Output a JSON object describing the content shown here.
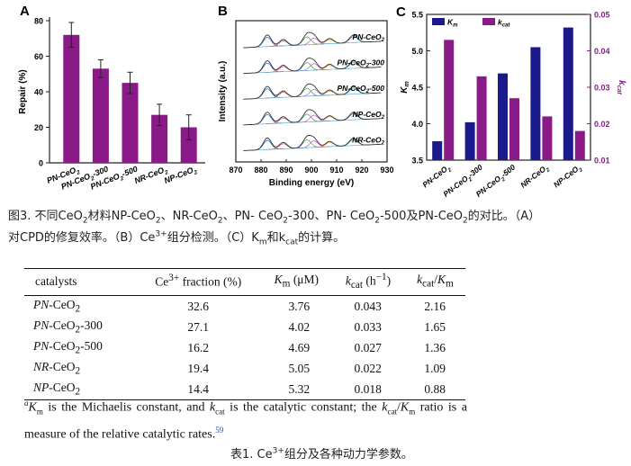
{
  "figure": {
    "panel_a": {
      "letter": "A",
      "chart_data": {
        "type": "bar",
        "categories": [
          "PN-CeO2",
          "PN-CeO2-300",
          "PN-CeO2-500",
          "NR-CeO2",
          "NP-CeO2"
        ],
        "values": [
          72,
          53,
          45,
          27,
          20
        ],
        "error": [
          7,
          5,
          6,
          6,
          7
        ],
        "ylabel": "Repair (%)",
        "ylim": [
          0,
          80
        ],
        "yticks": [
          0,
          20,
          40,
          60,
          80
        ],
        "color": "#8b1a89"
      }
    },
    "panel_b": {
      "letter": "B",
      "chart_data": {
        "type": "line",
        "xlabel": "Binding energy (eV)",
        "ylabel": "Intensity (a.u.)",
        "xlim": [
          870,
          930
        ],
        "xticks": [
          870,
          880,
          890,
          900,
          910,
          920,
          930
        ],
        "series": [
          {
            "name": "PN-CeO2"
          },
          {
            "name": "PN-CeO2-300"
          },
          {
            "name": "PN-CeO2-500"
          },
          {
            "name": "NP-CeO2"
          },
          {
            "name": "NR-CeO2"
          }
        ]
      }
    },
    "panel_c": {
      "letter": "C",
      "chart_data": {
        "type": "bar",
        "categories": [
          "PN-CeO2",
          "PN-CeO2-300",
          "PN-CeO2-500",
          "NR-CeO2",
          "NP-CeO2"
        ],
        "series": [
          {
            "name": "Km",
            "axis": "left",
            "values": [
              3.76,
              4.02,
              4.69,
              5.05,
              5.32
            ],
            "color": "#1a1a8c"
          },
          {
            "name": "kcat",
            "axis": "right",
            "values": [
              0.043,
              0.033,
              0.027,
              0.022,
              0.018
            ],
            "color": "#8b1a89"
          }
        ],
        "ylabel_left": "Km",
        "ylabel_right": "kcat",
        "ylim_left": [
          3.5,
          5.5
        ],
        "yticks_left": [
          "3.5",
          "4.0",
          "4.5",
          "5.0",
          "5.5"
        ],
        "ylim_right": [
          0.01,
          0.05
        ],
        "yticks_right": [
          "0.01",
          "0.02",
          "0.03",
          "0.04",
          "0.05"
        ],
        "legend": "top-left"
      }
    }
  },
  "caption": {
    "label": "图3. ",
    "t1": "不同CeO",
    "s1": "2",
    "t2": "材料NP-CeO",
    "s2": "2",
    "t3": "、NR-CeO",
    "s3": "2",
    "t4": "、PN- CeO",
    "s4": "2",
    "t5": "-300、PN- CeO",
    "s5": "2",
    "t6": "-500及PN-CeO",
    "s6": "2",
    "t7": "的对比。（A）",
    "line2a": "对CPD的修复效率。（B）Ce",
    "line2sup": "3+",
    "line2b": "组分检测。（C）K",
    "line2sub1": "m",
    "line2c": "和k",
    "line2sub2": "cat",
    "line2d": "的计算。"
  },
  "table": {
    "headers": {
      "catalysts": "catalysts",
      "ce3_pre": "Ce",
      "ce3_sup": "3+",
      "ce3_post": " fraction (%)",
      "km_var": "K",
      "km_sub": "m",
      "km_unit": " (μM)",
      "kcat_var": "k",
      "kcat_sub": "cat",
      "kcat_unit": " (h",
      "kcat_exp": "−1",
      "kcat_close": ")",
      "ratio_k": "k",
      "ratio_ksub": "cat",
      "ratio_slash": "/",
      "ratio_K": "K",
      "ratio_Ksub": "m"
    },
    "rows": [
      {
        "prefix": "PN",
        "base": "-CeO",
        "sub": "2",
        "suffix": "",
        "ce3": "32.6",
        "km": "3.76",
        "kcat": "0.043",
        "ratio": "2.16"
      },
      {
        "prefix": "PN",
        "base": "-CeO",
        "sub": "2",
        "suffix": "-300",
        "ce3": "27.1",
        "km": "4.02",
        "kcat": "0.033",
        "ratio": "1.65"
      },
      {
        "prefix": "PN",
        "base": "-CeO",
        "sub": "2",
        "suffix": "-500",
        "ce3": "16.2",
        "km": "4.69",
        "kcat": "0.027",
        "ratio": "1.36"
      },
      {
        "prefix": "NR",
        "base": "-CeO",
        "sub": "2",
        "suffix": "",
        "ce3": "19.4",
        "km": "5.05",
        "kcat": "0.022",
        "ratio": "1.09"
      },
      {
        "prefix": "NP",
        "base": "-CeO",
        "sub": "2",
        "suffix": "",
        "ce3": "14.4",
        "km": "5.32",
        "kcat": "0.018",
        "ratio": "0.88"
      }
    ]
  },
  "footnote": {
    "mark": "a",
    "km": "K",
    "km_sub": "m",
    "t1": " is the Michaelis constant, and ",
    "kcat": "k",
    "kcat_sub": "cat",
    "t2": " is the catalytic constant; the ",
    "r_k": "k",
    "r_ksub": "cat",
    "r_slash": "/",
    "r_K": "K",
    "r_Ksub": "m",
    "t3": " ratio is a measure of the relative catalytic rates.",
    "ref": "59"
  },
  "table_caption": {
    "label": "表1. ",
    "t1": "Ce",
    "sup": "3+",
    "t2": "组分及各种动力学参数。"
  }
}
